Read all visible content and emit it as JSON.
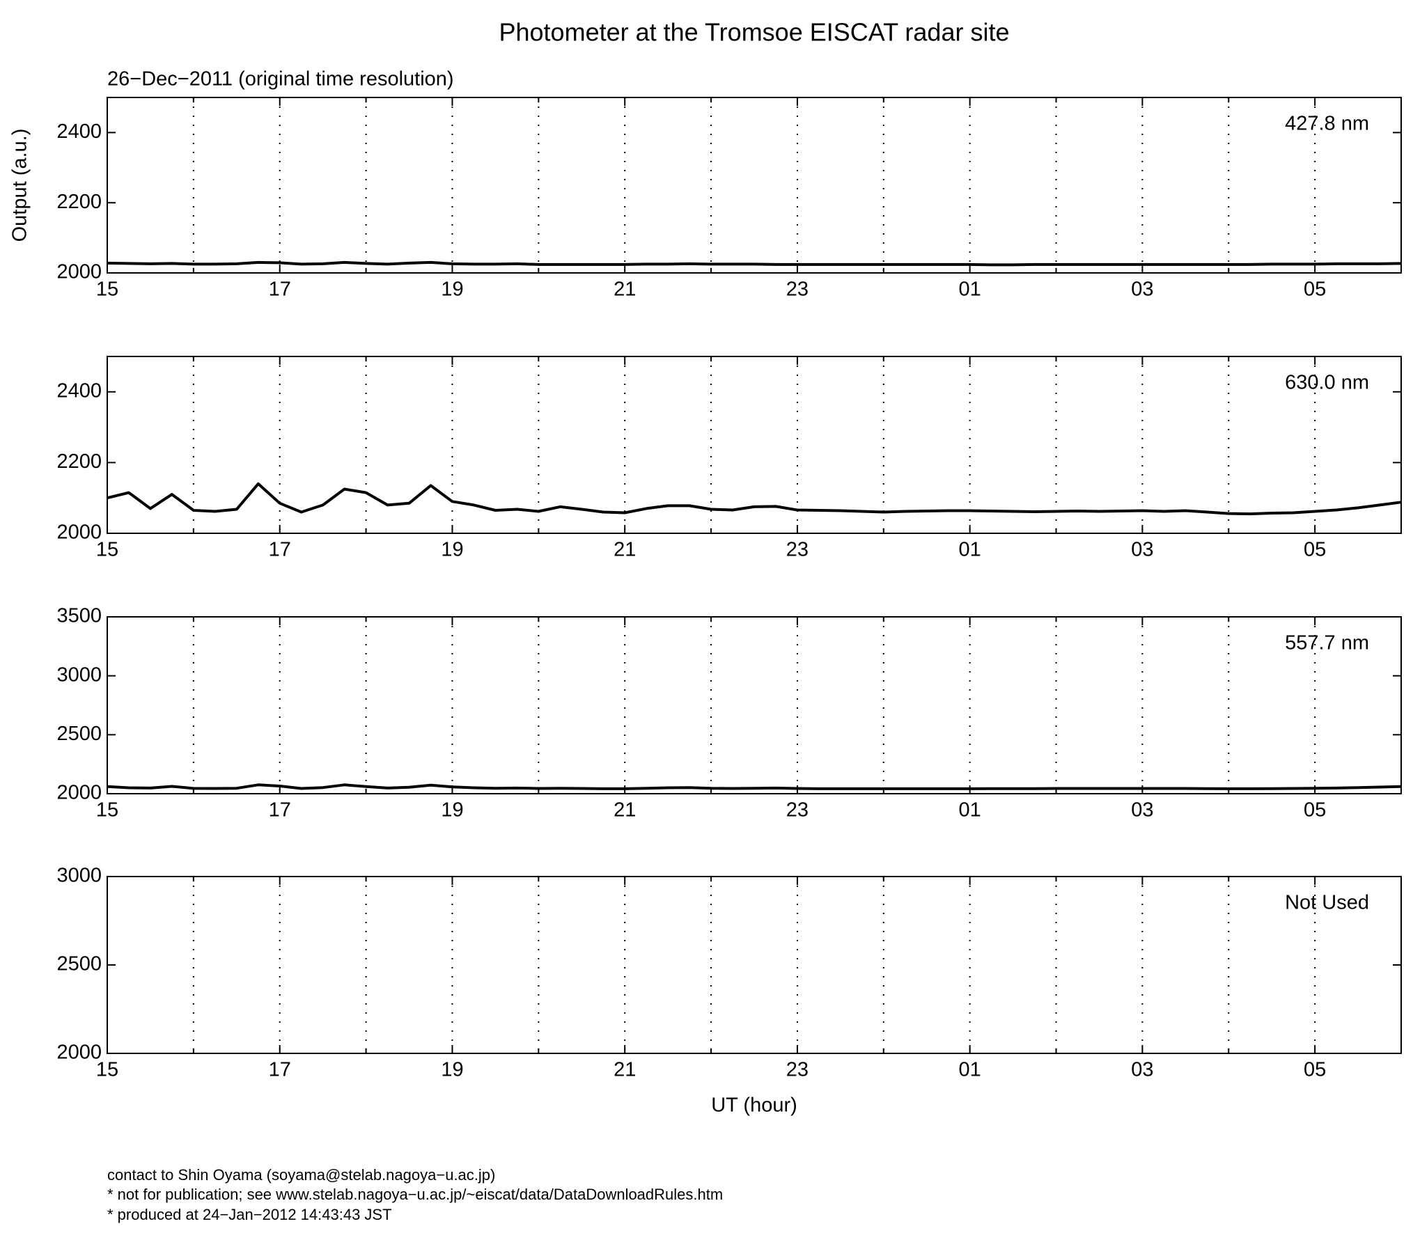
{
  "title": "Photometer at the Tromsoe EISCAT radar site",
  "subtitle": "26−Dec−2011 (original time resolution)",
  "footer": [
    "contact to Shin Oyama (soyama@stelab.nagoya−u.ac.jp)",
    "* not for publication; see www.stelab.nagoya−u.ac.jp/~eiscat/data/DataDownloadRules.htm",
    "* produced at 24−Jan−2012 14:43:43 JST"
  ],
  "chart_data": [
    {
      "type": "line",
      "label": "427.8 nm",
      "ylabel": "Output (a.u.)",
      "x": [
        15,
        15.25,
        15.5,
        15.75,
        16,
        16.25,
        16.5,
        16.75,
        17,
        17.25,
        17.5,
        17.75,
        18,
        18.25,
        18.5,
        18.75,
        19,
        19.25,
        19.5,
        19.75,
        20,
        20.25,
        20.5,
        20.75,
        21,
        21.25,
        21.5,
        21.75,
        22,
        22.25,
        22.5,
        22.75,
        23,
        23.25,
        23.5,
        23.75,
        24,
        24.25,
        24.5,
        24.75,
        25,
        25.25,
        25.5,
        25.75,
        26,
        26.25,
        26.5,
        26.75,
        27,
        27.25,
        27.5,
        27.75,
        28,
        28.25,
        28.5,
        28.75,
        29,
        29.25,
        29.5,
        29.75,
        30
      ],
      "series": [
        {
          "color": "#000000",
          "values": [
            2028,
            2027,
            2026,
            2027,
            2025,
            2025,
            2026,
            2030,
            2029,
            2025,
            2026,
            2030,
            2027,
            2025,
            2028,
            2030,
            2026,
            2025,
            2025,
            2026,
            2024,
            2024,
            2024,
            2024,
            2024,
            2025,
            2025,
            2026,
            2025,
            2025,
            2025,
            2024,
            2024,
            2024,
            2024,
            2024,
            2024,
            2024,
            2024,
            2024,
            2024,
            2023,
            2023,
            2024,
            2024,
            2024,
            2024,
            2024,
            2024,
            2024,
            2024,
            2024,
            2024,
            2024,
            2025,
            2025,
            2025,
            2026,
            2026,
            2026,
            2027
          ]
        }
      ],
      "xlim": [
        15,
        30
      ],
      "xticks": [
        15,
        17,
        19,
        21,
        23,
        {
          "value": 25,
          "label": "01"
        },
        {
          "value": 27,
          "label": "03"
        },
        {
          "value": 29,
          "label": "05"
        }
      ],
      "xminor": [
        16,
        18,
        20,
        22,
        24,
        26,
        28
      ],
      "ylim": [
        2000,
        2500
      ],
      "yticks": [
        2000,
        2200,
        2400
      ],
      "grid": true
    },
    {
      "type": "line",
      "label": "630.0 nm",
      "x": [
        15,
        15.25,
        15.5,
        15.75,
        16,
        16.25,
        16.5,
        16.75,
        17,
        17.25,
        17.5,
        17.75,
        18,
        18.25,
        18.5,
        18.75,
        19,
        19.25,
        19.5,
        19.75,
        20,
        20.25,
        20.5,
        20.75,
        21,
        21.25,
        21.5,
        21.75,
        22,
        22.25,
        22.5,
        22.75,
        23,
        23.25,
        23.5,
        23.75,
        24,
        24.25,
        24.5,
        24.75,
        25,
        25.25,
        25.5,
        25.75,
        26,
        26.25,
        26.5,
        26.75,
        27,
        27.25,
        27.5,
        27.75,
        28,
        28.25,
        28.5,
        28.75,
        29,
        29.25,
        29.5,
        29.75,
        30
      ],
      "series": [
        {
          "color": "#000000",
          "values": [
            2100,
            2115,
            2070,
            2110,
            2065,
            2062,
            2068,
            2140,
            2085,
            2060,
            2080,
            2125,
            2115,
            2080,
            2085,
            2135,
            2090,
            2080,
            2065,
            2068,
            2062,
            2075,
            2068,
            2060,
            2058,
            2070,
            2078,
            2078,
            2068,
            2066,
            2075,
            2076,
            2066,
            2065,
            2064,
            2062,
            2060,
            2062,
            2063,
            2064,
            2064,
            2063,
            2062,
            2061,
            2062,
            2063,
            2062,
            2063,
            2064,
            2062,
            2064,
            2060,
            2056,
            2055,
            2057,
            2058,
            2062,
            2066,
            2072,
            2080,
            2088
          ]
        }
      ],
      "xlim": [
        15,
        30
      ],
      "xticks": [
        15,
        17,
        19,
        21,
        23,
        {
          "value": 25,
          "label": "01"
        },
        {
          "value": 27,
          "label": "03"
        },
        {
          "value": 29,
          "label": "05"
        }
      ],
      "xminor": [
        16,
        18,
        20,
        22,
        24,
        26,
        28
      ],
      "ylim": [
        2000,
        2500
      ],
      "yticks": [
        2000,
        2200,
        2400
      ],
      "grid": true
    },
    {
      "type": "line",
      "label": "557.7 nm",
      "x": [
        15,
        15.25,
        15.5,
        15.75,
        16,
        16.25,
        16.5,
        16.75,
        17,
        17.25,
        17.5,
        17.75,
        18,
        18.25,
        18.5,
        18.75,
        19,
        19.25,
        19.5,
        19.75,
        20,
        20.25,
        20.5,
        20.75,
        21,
        21.25,
        21.5,
        21.75,
        22,
        22.25,
        22.5,
        22.75,
        23,
        23.25,
        23.5,
        23.75,
        24,
        24.25,
        24.5,
        24.75,
        25,
        25.25,
        25.5,
        25.75,
        26,
        26.25,
        26.5,
        26.75,
        27,
        27.25,
        27.5,
        27.75,
        28,
        28.25,
        28.5,
        28.75,
        29,
        29.25,
        29.5,
        29.75,
        30
      ],
      "series": [
        {
          "color": "#000000",
          "values": [
            2060,
            2050,
            2048,
            2062,
            2045,
            2044,
            2046,
            2075,
            2065,
            2044,
            2052,
            2075,
            2060,
            2048,
            2055,
            2072,
            2058,
            2050,
            2046,
            2048,
            2044,
            2046,
            2044,
            2042,
            2042,
            2046,
            2050,
            2052,
            2046,
            2044,
            2046,
            2048,
            2044,
            2042,
            2042,
            2042,
            2042,
            2042,
            2042,
            2042,
            2042,
            2043,
            2043,
            2043,
            2044,
            2044,
            2044,
            2044,
            2044,
            2044,
            2044,
            2043,
            2042,
            2042,
            2043,
            2044,
            2046,
            2048,
            2052,
            2056,
            2060
          ]
        }
      ],
      "xlim": [
        15,
        30
      ],
      "xticks": [
        15,
        17,
        19,
        21,
        23,
        {
          "value": 25,
          "label": "01"
        },
        {
          "value": 27,
          "label": "03"
        },
        {
          "value": 29,
          "label": "05"
        }
      ],
      "xminor": [
        16,
        18,
        20,
        22,
        24,
        26,
        28
      ],
      "ylim": [
        2000,
        3500
      ],
      "yticks": [
        2000,
        2500,
        3000,
        3500
      ],
      "grid": true
    },
    {
      "type": "line",
      "label": "Not Used",
      "xlabel": "UT (hour)",
      "x": [],
      "series": [],
      "xlim": [
        15,
        30
      ],
      "xticks": [
        15,
        17,
        19,
        21,
        23,
        {
          "value": 25,
          "label": "01"
        },
        {
          "value": 27,
          "label": "03"
        },
        {
          "value": 29,
          "label": "05"
        }
      ],
      "xminor": [
        16,
        18,
        20,
        22,
        24,
        26,
        28
      ],
      "ylim": [
        2000,
        3000
      ],
      "yticks": [
        2000,
        2500,
        3000
      ],
      "grid": true
    }
  ]
}
